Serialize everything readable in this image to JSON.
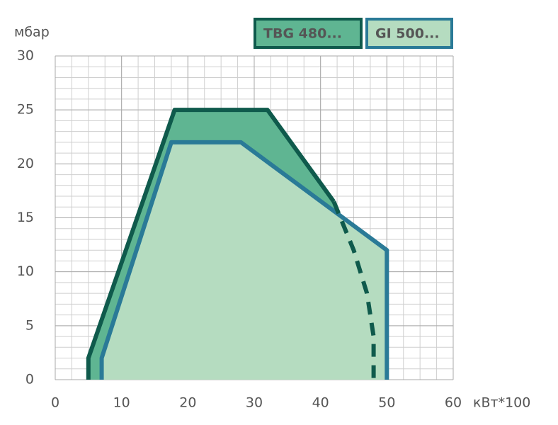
{
  "chart_data": {
    "type": "area",
    "x_label": "кВт*100",
    "y_label": "мбар",
    "xlim": [
      0,
      60
    ],
    "xticks": [
      0,
      10,
      20,
      30,
      40,
      50,
      60
    ],
    "ylim": [
      0,
      30
    ],
    "yticks": [
      0,
      5,
      10,
      15,
      20,
      25,
      30
    ],
    "grid": true,
    "series": [
      {
        "name": "TBG 480...",
        "color": "#0f5a4c",
        "fill": "#5fb592",
        "x": [
          5,
          5,
          18,
          32,
          42
        ],
        "values": [
          0,
          2,
          25,
          25,
          16.5
        ],
        "dashed_x": [
          42,
          45,
          47,
          48,
          48
        ],
        "dashed_values": [
          16.5,
          12,
          8,
          4,
          0
        ]
      },
      {
        "name": "GI 500...",
        "color": "#2a7a97",
        "fill": "#b5dcc0",
        "x": [
          7,
          7,
          17.5,
          28,
          50,
          50
        ],
        "values": [
          0,
          2,
          22,
          22,
          12,
          0
        ]
      }
    ]
  }
}
